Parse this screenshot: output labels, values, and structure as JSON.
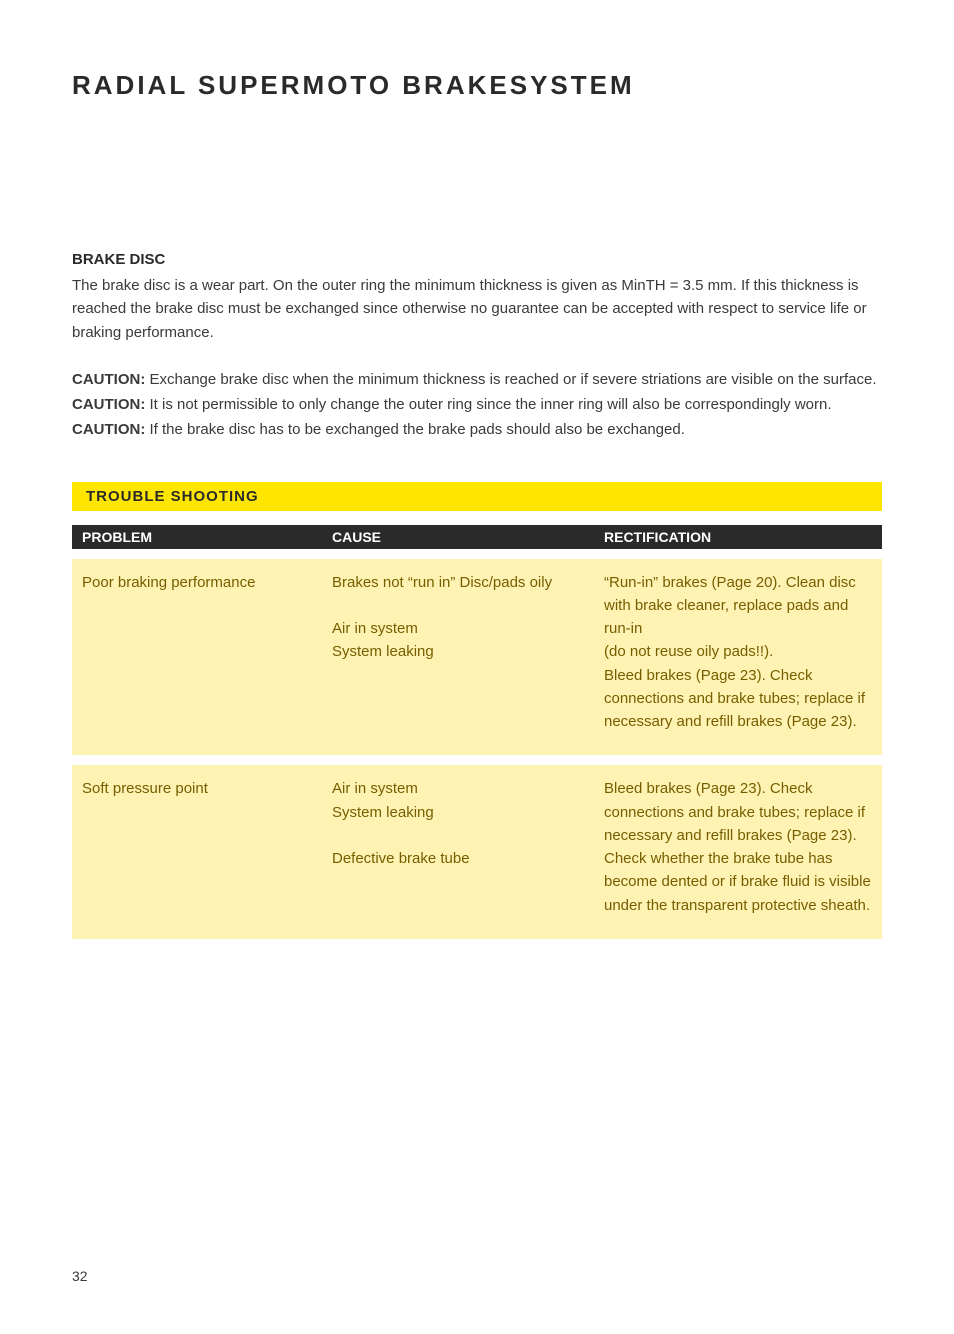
{
  "title": "RADIAL SUPERMOTO BRAKESYSTEM",
  "brake_disc": {
    "heading": "BRAKE DISC",
    "body": "The brake disc is a wear part. On the outer ring the minimum thickness is given as MinTH = 3.5 mm. If this thickness is reached the brake disc must be exchanged since otherwise no guarantee can be accepted with respect to service life or braking performance."
  },
  "cautions": {
    "label": "CAUTION:",
    "items": [
      "Exchange brake disc when the minimum thickness is reached or if severe striations are visible on the surface.",
      "It is not permissible to only change the outer ring since the inner ring will also be correspondingly worn.",
      "If the brake disc has to be exchanged the brake pads should also be exchanged."
    ]
  },
  "troubleshooting": {
    "section_label": "TROUBLE SHOOTING",
    "headers": {
      "problem": "PROBLEM",
      "cause": "CAUSE",
      "rectification": "RECTIFICATION"
    },
    "rows": [
      {
        "problem": "Poor braking performance",
        "cause": "Brakes not “run in” Disc/pads oily\n\nAir in system\nSystem leaking",
        "rectification": "“Run-in” brakes (Page 20). Clean disc with brake cleaner, replace pads and run-in\n(do not reuse oily pads!!).\nBleed brakes (Page 23). Check connections and brake tubes; replace if necessary and refill brakes (Page 23)."
      },
      {
        "problem": "Soft pressure point",
        "cause": "Air in system\nSystem leaking\n\nDefective brake tube",
        "rectification": "Bleed brakes (Page 23). Check connections and brake tubes; replace if necessary and refill brakes (Page 23). Check whether the brake tube has become dented or if brake fluid is visible under the transparent protective sheath."
      }
    ]
  },
  "page_number": "32",
  "colors": {
    "yellow_bar": "#ffe600",
    "table_row_bg": "#fff3b3",
    "table_row_text": "#765e00",
    "header_bg": "#2a2a2a",
    "body_text": "#3a3a3a"
  }
}
